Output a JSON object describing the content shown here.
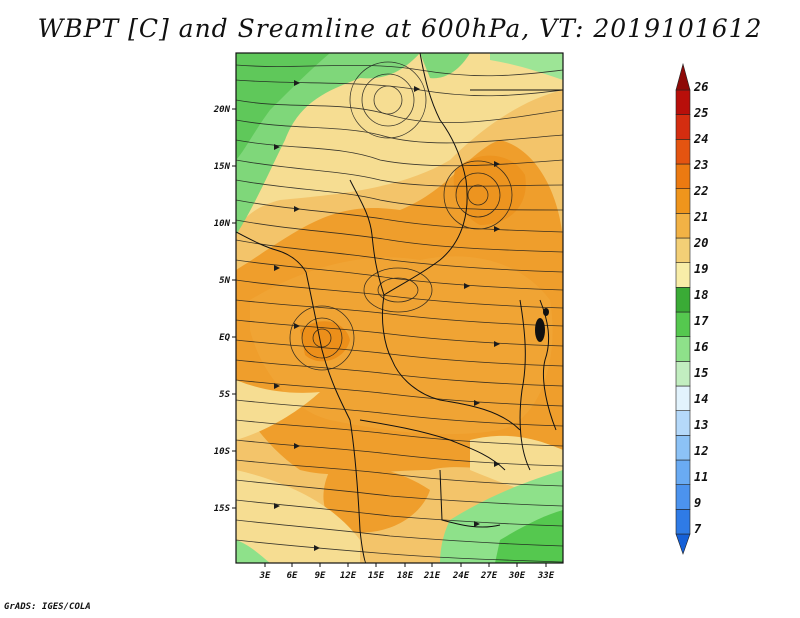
{
  "title": "WBPT [C] and Sreamline at 600hPa, VT: 2019101612",
  "footer": "GrADS: IGES/COLA",
  "map": {
    "lat_labels": [
      "20N",
      "15N",
      "10N",
      "5N",
      "EQ",
      "5S",
      "10S",
      "15S"
    ],
    "lon_labels": [
      "3E",
      "6E",
      "9E",
      "12E",
      "15E",
      "18E",
      "21E",
      "24E",
      "27E",
      "30E",
      "33E"
    ]
  },
  "colorbar": {
    "labels": [
      "7",
      "9",
      "11",
      "12",
      "13",
      "14",
      "15",
      "16",
      "17",
      "18",
      "19",
      "20",
      "21",
      "22",
      "23",
      "24",
      "25",
      "26"
    ],
    "colors": [
      "#1560d8",
      "#2f7be6",
      "#4c93ee",
      "#6aabf3",
      "#8cc2f6",
      "#b5d9fa",
      "#e2f3fd",
      "#c2eec0",
      "#8ee18a",
      "#55c84f",
      "#3aab36",
      "#f8eda8",
      "#f3cf76",
      "#f2b245",
      "#ef951c",
      "#ec7a11",
      "#e45410",
      "#d42d10",
      "#b80f0a",
      "#8e0a08"
    ]
  }
}
